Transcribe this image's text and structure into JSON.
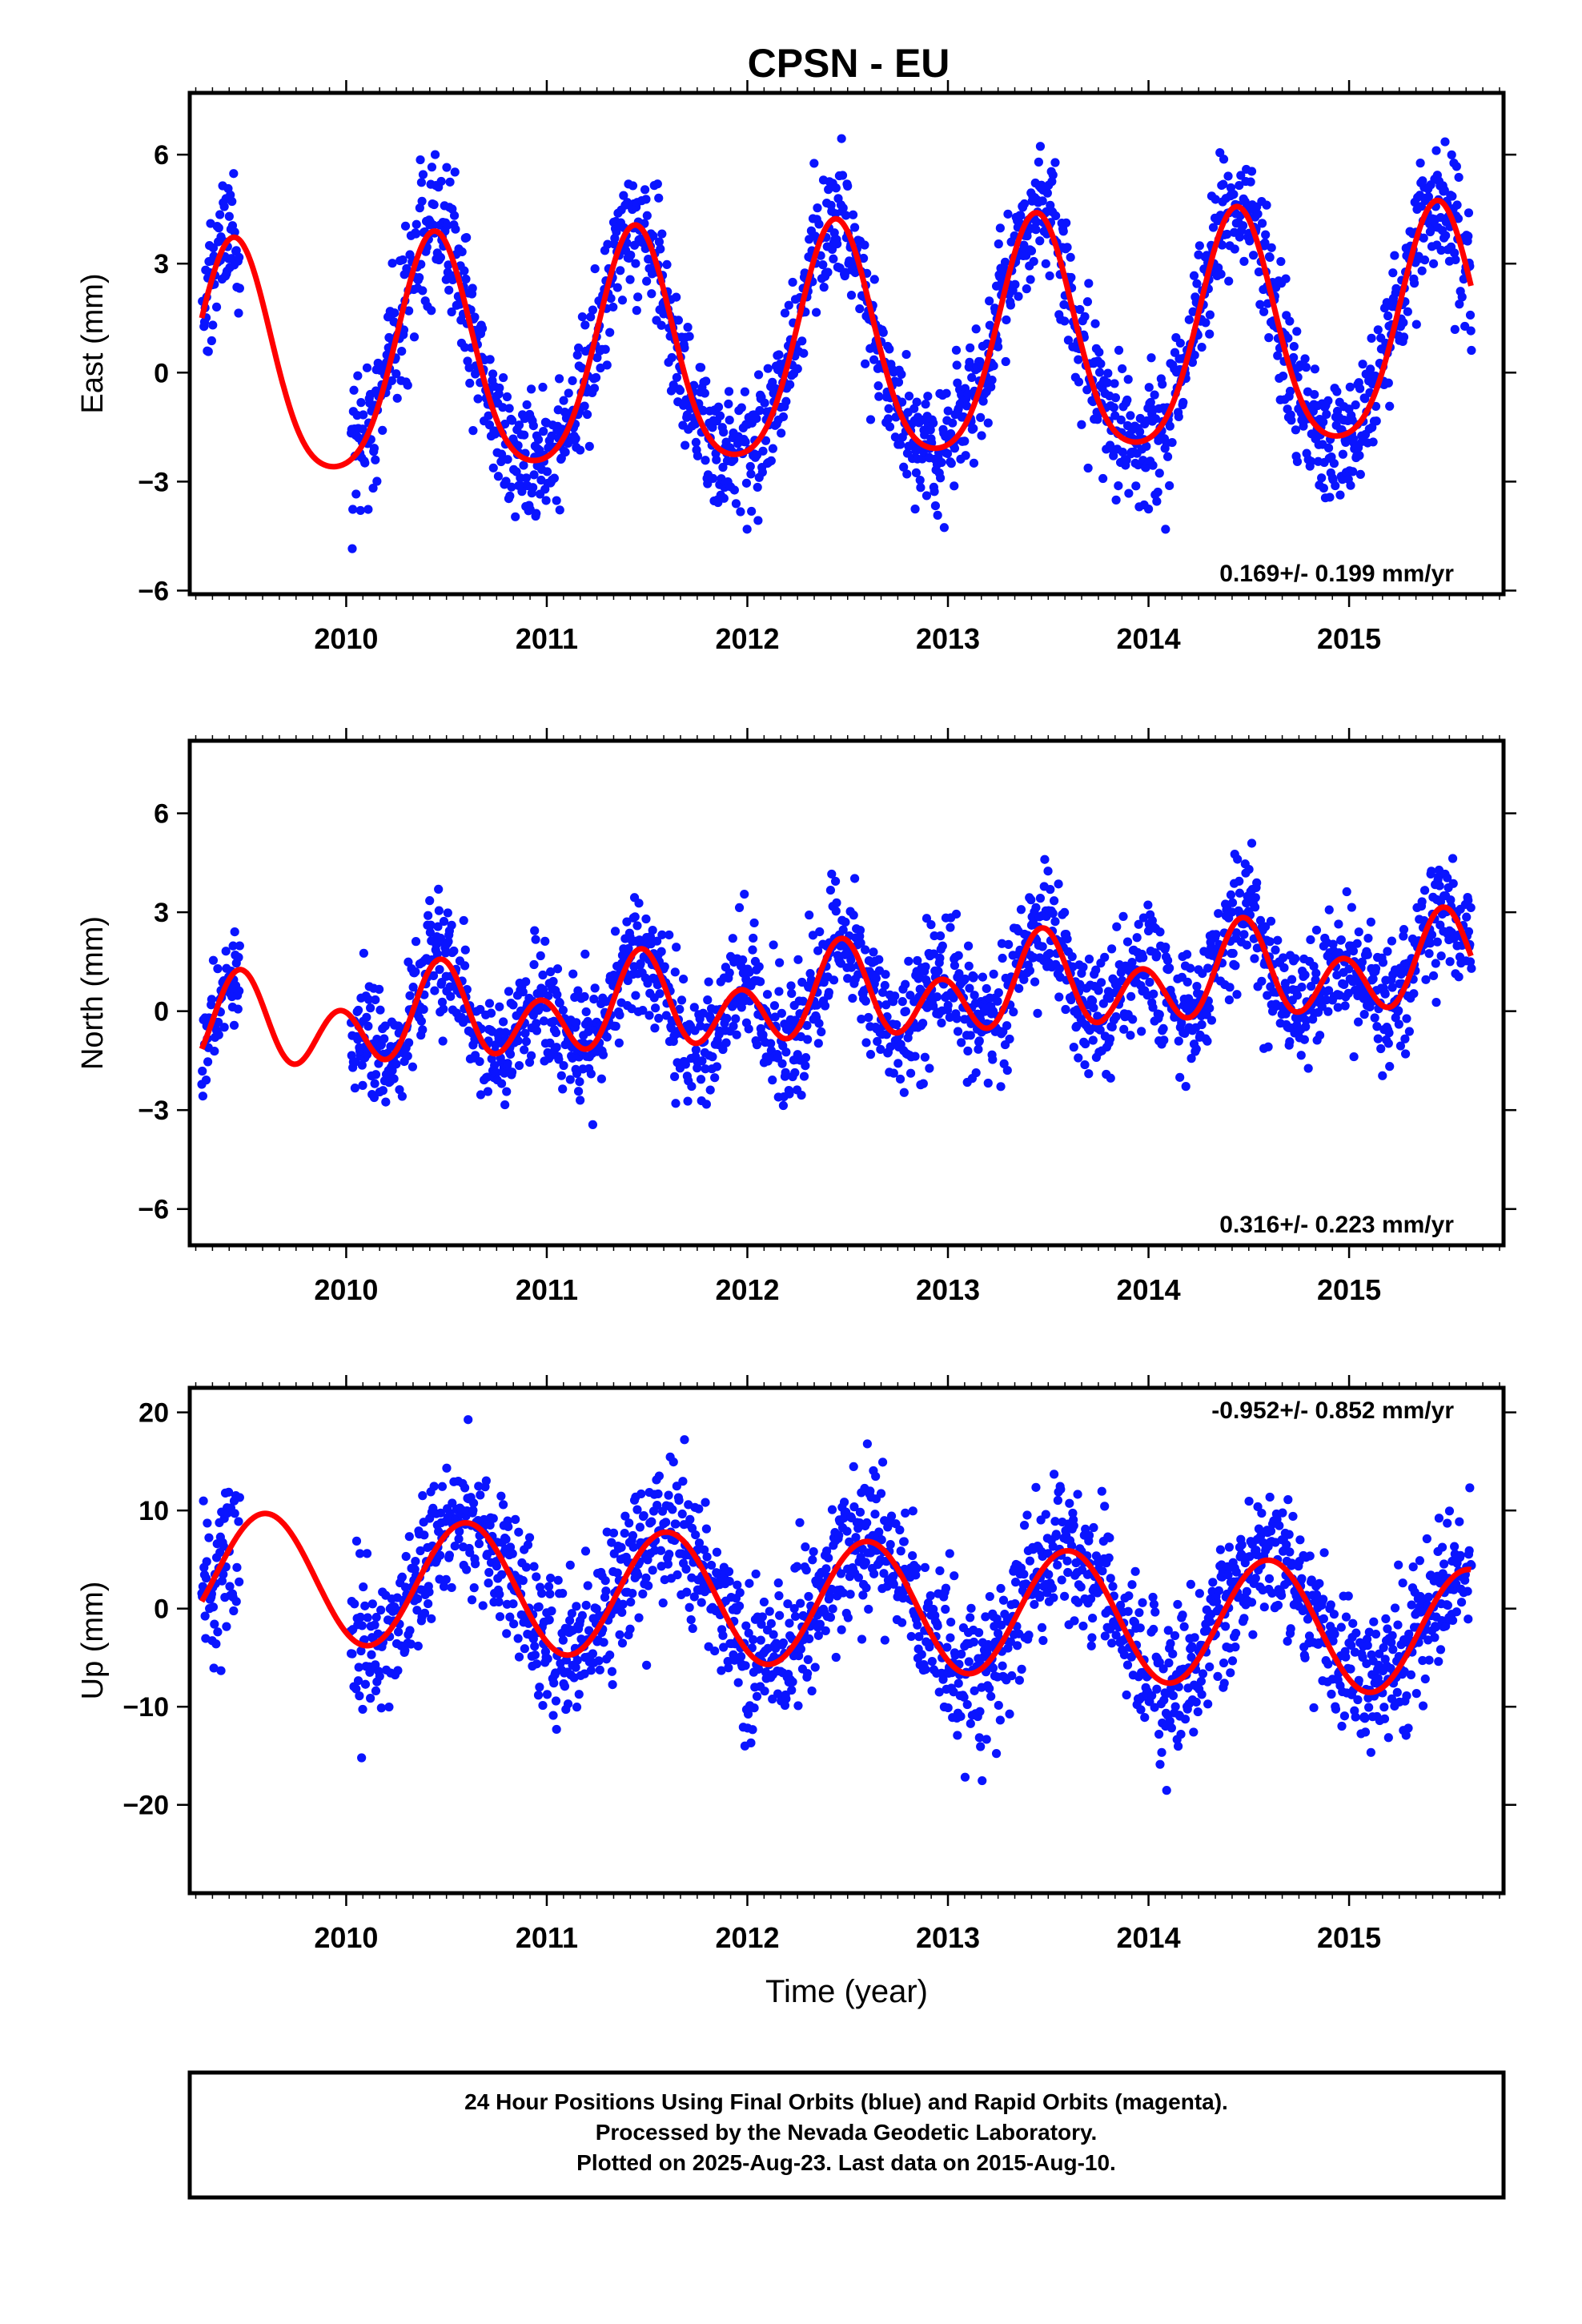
{
  "title": "CPSN - EU",
  "colors": {
    "points": "#0a14ff",
    "fit": "#ff0000",
    "frame": "#000000"
  },
  "chart_data": [
    {
      "type": "scatter",
      "panel": "east",
      "ylabel": "East (mm)",
      "xlabel": "",
      "xlim": [
        2009.22,
        2015.77
      ],
      "ylim": [
        -6.1,
        7.7
      ],
      "x_ticks": [
        "2010",
        "2011",
        "2012",
        "2013",
        "2014",
        "2015"
      ],
      "y_ticks": [
        "6",
        "3",
        "0",
        "−3",
        "−6"
      ],
      "y_tick_values": [
        6,
        3,
        0,
        -3,
        -6
      ],
      "rate_label": "0.169+/- 0.199 mm/yr",
      "rate_position": "bottom-right",
      "series": [
        {
          "role": "data",
          "style": "blue dots",
          "data_start": 2009.28,
          "data_end": 2015.61,
          "gap": [
            2009.47,
            2010.02
          ],
          "annual_amplitude": 3.2,
          "annual_peak": 2009.44,
          "semiannual_amplitude": 0.5,
          "semiannual_peak": 2009.44,
          "offset": 0.0,
          "trend_per_year": 0.169,
          "scatter_sigma": 0.9
        },
        {
          "role": "fit",
          "style": "red line",
          "fit_start": 2009.28,
          "fit_end": 2015.61
        }
      ]
    },
    {
      "type": "scatter",
      "panel": "north",
      "ylabel": "North (mm)",
      "xlabel": "",
      "xlim": [
        2009.22,
        2015.77
      ],
      "ylim": [
        -7.1,
        8.2
      ],
      "x_ticks": [
        "2010",
        "2011",
        "2012",
        "2013",
        "2014",
        "2015"
      ],
      "y_ticks": [
        "6",
        "3",
        "0",
        "−3",
        "−6"
      ],
      "y_tick_values": [
        6,
        3,
        0,
        -3,
        -6
      ],
      "rate_label": "0.316+/- 0.223 mm/yr",
      "rate_position": "bottom-right",
      "series": [
        {
          "role": "data",
          "style": "blue dots",
          "data_start": 2009.28,
          "data_end": 2015.61,
          "gap": [
            2009.47,
            2010.02
          ],
          "annual_amplitude": 0.7,
          "annual_peak": 2009.47,
          "semiannual_amplitude": 1.1,
          "semiannual_peak": 2009.47,
          "offset": -0.6,
          "trend_per_year": 0.316,
          "scatter_sigma": 0.9
        },
        {
          "role": "fit",
          "style": "red line",
          "fit_start": 2009.28,
          "fit_end": 2015.61
        }
      ]
    },
    {
      "type": "scatter",
      "panel": "up",
      "ylabel": "Up (mm)",
      "xlabel": "Time (year)",
      "xlim": [
        2009.22,
        2015.77
      ],
      "ylim": [
        -29,
        22.5
      ],
      "x_ticks": [
        "2010",
        "2011",
        "2012",
        "2013",
        "2014",
        "2015"
      ],
      "y_ticks": [
        "20",
        "10",
        "0",
        "−10",
        "−20"
      ],
      "y_tick_values": [
        20,
        10,
        0,
        -10,
        -20
      ],
      "rate_label": "-0.952+/- 0.852 mm/yr",
      "rate_position": "top-right",
      "series": [
        {
          "role": "data",
          "style": "blue dots",
          "data_start": 2009.28,
          "data_end": 2015.61,
          "gap": [
            2009.47,
            2010.02
          ],
          "annual_amplitude": 6.5,
          "annual_peak": 2009.6,
          "semiannual_amplitude": 0.0,
          "semiannual_peak": 2009.6,
          "offset": 3.5,
          "trend_per_year": -0.952,
          "scatter_sigma": 3.8
        },
        {
          "role": "fit",
          "style": "red line",
          "fit_start": 2009.28,
          "fit_end": 2015.61
        }
      ]
    }
  ],
  "footer": {
    "line1": "24 Hour Positions Using Final Orbits (blue) and Rapid Orbits (magenta).",
    "line2": "Processed by the Nevada Geodetic Laboratory.",
    "line3": "Plotted on 2025-Aug-23. Last data on 2015-Aug-10."
  }
}
